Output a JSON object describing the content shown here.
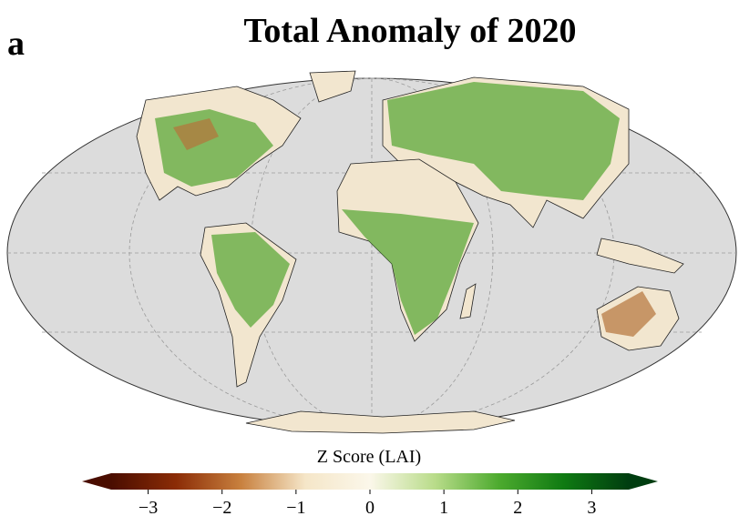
{
  "panel_label": "a",
  "title": "Total Anomaly of 2020",
  "colorbar": {
    "label": "Z Score (LAI)",
    "lim": [
      -3.5,
      3.5
    ],
    "ticks": [
      {
        "value": -3,
        "label": "−3"
      },
      {
        "value": -2,
        "label": "−2"
      },
      {
        "value": -1,
        "label": "−1"
      },
      0,
      1,
      2,
      3
    ],
    "colors": [
      "#4a0d00",
      "#8b2c06",
      "#c8803e",
      "#f5e6c8",
      "#fbf7ea",
      "#b9dc8a",
      "#4caa2e",
      "#0f7a12",
      "#003d10"
    ]
  }
}
